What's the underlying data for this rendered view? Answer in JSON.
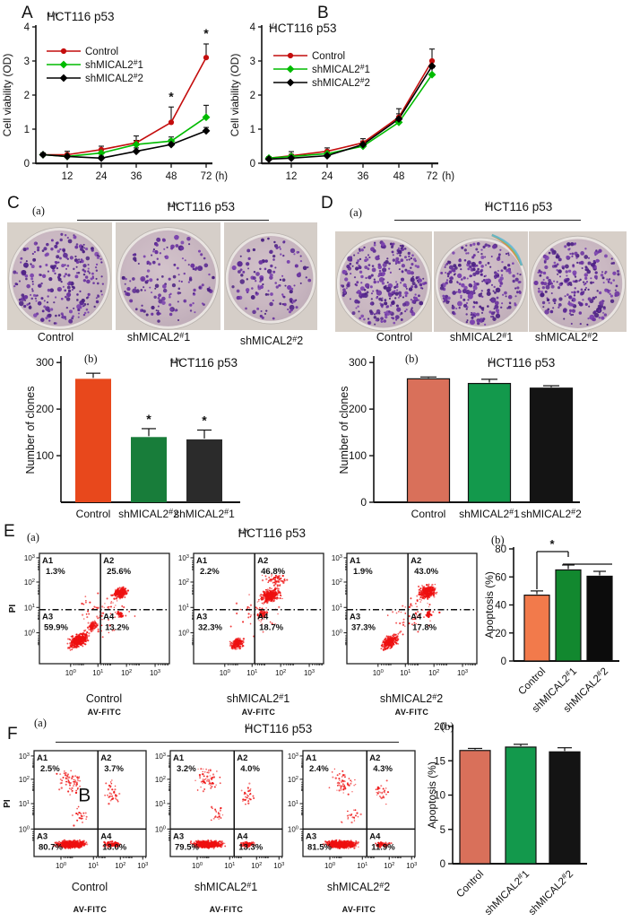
{
  "panels": {
    "A": {
      "label": "A",
      "title_base": "HCT116 p53",
      "title_sup": "+/+"
    },
    "B": {
      "label": "B",
      "title_base": "HCT116 p53",
      "title_sup": "-/-"
    },
    "C": {
      "label": "C",
      "marker_a": "(a)",
      "marker_b": "(b)",
      "title_base": "HCT116 p53",
      "title_sup": "+/+",
      "dish_labels": [
        "Control",
        "shMICAL2#1",
        "shMICAL2#2"
      ],
      "colony_counts": [
        260,
        150,
        125
      ]
    },
    "D": {
      "label": "D",
      "marker_a": "(a)",
      "marker_b": "(b)",
      "title_base": "HCT116 p53",
      "title_sup": "-/-",
      "dish_labels": [
        "Control",
        "shMICAL2#1",
        "shMICAL2#2"
      ],
      "colony_counts": [
        290,
        265,
        255
      ]
    },
    "E": {
      "label": "E",
      "marker_a": "(a)",
      "marker_b": "(b)",
      "title_base": "HCT116 p53",
      "title_sup": "+/+",
      "plot_labels": [
        "Control",
        "shMICAL2#1",
        "shMICAL2#2"
      ]
    },
    "F": {
      "label": "F",
      "marker_a": "(a)",
      "marker_b": "(b)",
      "title_base": "HCT116 p53",
      "title_sup": "-/-",
      "plot_labels": [
        "Control",
        "shMICAL2#1",
        "shMICAL2#2"
      ],
      "stray_label": "B"
    }
  },
  "chart_data": [
    {
      "id": "A",
      "type": "line",
      "title": "HCT116 p53+/+",
      "xlabel": "(h)",
      "ylabel": "Cell viability (OD)",
      "x": [
        0,
        12,
        24,
        36,
        48,
        72
      ],
      "xticklabels": [
        "12",
        "24",
        "36",
        "48",
        "72"
      ],
      "ylim": [
        0,
        4
      ],
      "yticks": [
        0,
        1,
        2,
        3,
        4
      ],
      "series": [
        {
          "name": "Control",
          "color": "#c40d0d",
          "marker": "circle",
          "values": [
            0.25,
            0.25,
            0.4,
            0.6,
            1.2,
            3.1
          ],
          "errors": [
            0.05,
            0.1,
            0.1,
            0.2,
            0.45,
            0.4
          ]
        },
        {
          "name": "shMICAL2#1",
          "color": "#00bb00",
          "marker": "diamond",
          "values": [
            0.25,
            0.2,
            0.3,
            0.55,
            0.65,
            1.35
          ],
          "errors": [
            0.04,
            0.05,
            0.08,
            0.12,
            0.12,
            0.35
          ]
        },
        {
          "name": "shMICAL2#2",
          "color": "#000000",
          "marker": "diamond",
          "values": [
            0.25,
            0.2,
            0.15,
            0.35,
            0.55,
            0.95
          ],
          "errors": [
            0.04,
            0.05,
            0.06,
            0.1,
            0.15,
            0.1
          ]
        }
      ],
      "significance": [
        {
          "point_index": 4,
          "text": "*"
        },
        {
          "point_index": 5,
          "text": "*"
        }
      ]
    },
    {
      "id": "B",
      "type": "line",
      "title": "HCT116 p53-/-",
      "xlabel": "(h)",
      "ylabel": "Cell viability (OD)",
      "x": [
        0,
        12,
        24,
        36,
        48,
        72
      ],
      "xticklabels": [
        "12",
        "24",
        "36",
        "48",
        "72"
      ],
      "ylim": [
        0,
        4
      ],
      "yticks": [
        0,
        1,
        2,
        3,
        4
      ],
      "series": [
        {
          "name": "Control",
          "color": "#c40d0d",
          "marker": "circle",
          "values": [
            0.15,
            0.22,
            0.35,
            0.6,
            1.35,
            3.0
          ],
          "errors": [
            0.04,
            0.12,
            0.1,
            0.12,
            0.25,
            0.35
          ]
        },
        {
          "name": "shMICAL2#1",
          "color": "#00bb00",
          "marker": "diamond",
          "values": [
            0.15,
            0.2,
            0.28,
            0.5,
            1.2,
            2.6
          ],
          "errors": [
            0.04,
            0.06,
            0.08,
            0.1,
            0.15,
            0.2
          ]
        },
        {
          "name": "shMICAL2#2",
          "color": "#000000",
          "marker": "diamond",
          "values": [
            0.12,
            0.15,
            0.22,
            0.55,
            1.3,
            2.85
          ],
          "errors": [
            0.04,
            0.05,
            0.06,
            0.1,
            0.15,
            0.15
          ]
        }
      ],
      "significance": []
    },
    {
      "id": "Cb",
      "type": "bar",
      "title": "HCT116 p53+/+",
      "ylabel": "Number of clones",
      "categories": [
        "Control",
        "shMICAL2#2",
        "shMICAL2#1"
      ],
      "values": [
        265,
        140,
        135
      ],
      "errors": [
        12,
        18,
        20
      ],
      "colors": [
        "#e8481c",
        "#187d3a",
        "#2b2b2b"
      ],
      "yticks": [
        100,
        200,
        300
      ],
      "ylim": [
        0,
        310
      ],
      "significance": [
        "",
        "*",
        "*"
      ]
    },
    {
      "id": "Db",
      "type": "bar",
      "title": "HCT116 p53-/-",
      "ylabel": "Number of clones",
      "categories": [
        "Control",
        "shMICAL2#1",
        "shMICAL2#2"
      ],
      "values": [
        265,
        255,
        245
      ],
      "errors": [
        4,
        9,
        5
      ],
      "colors": [
        "#d9705a",
        "#13994c",
        "#141414"
      ],
      "yticks": [
        0,
        100,
        200,
        300
      ],
      "ylim": [
        0,
        310
      ],
      "significance": [
        "",
        "",
        ""
      ]
    },
    {
      "id": "Eb",
      "type": "bar",
      "title": "",
      "ylabel": "Apoptosis (%)",
      "categories": [
        "Control",
        "shMICAL2#1",
        "shMICAL2#2"
      ],
      "values": [
        47,
        65,
        60.5
      ],
      "errors": [
        3,
        3.5,
        3.5
      ],
      "colors": [
        "#f27a4b",
        "#12882f",
        "#0c0c0c"
      ],
      "yticks": [
        0,
        20,
        40,
        60,
        80
      ],
      "ylim": [
        0,
        80
      ],
      "significance": [
        "",
        "",
        ""
      ],
      "significance_bracket": {
        "from": "Control",
        "to": "shMICAL2#1",
        "text": "*"
      }
    },
    {
      "id": "Fb",
      "type": "bar",
      "title": "",
      "ylabel": "Apoptosis (%)",
      "categories": [
        "Control",
        "shMICAL2#1",
        "shMICAL2#2"
      ],
      "values": [
        16.5,
        17.0,
        16.3
      ],
      "errors": [
        0.3,
        0.4,
        0.6
      ],
      "colors": [
        "#d9705a",
        "#13994c",
        "#141414"
      ],
      "yticks": [
        0,
        5,
        10,
        15,
        20
      ],
      "ylim": [
        0,
        20
      ],
      "significance": [
        "",
        "",
        ""
      ]
    },
    {
      "id": "E-Control",
      "type": "scatter",
      "panel": "E",
      "label": "Control",
      "xlabel": "AV-FITC",
      "ylabel": "PI",
      "tick_exponents": [
        0,
        1,
        2,
        3
      ],
      "quadrants": {
        "A1": "1.3%",
        "A2": "25.6%",
        "A3": "59.9%",
        "A4": "13.2%"
      },
      "clusters": [
        [
          0.3,
          0.79,
          0.1,
          0.08,
          420,
          0.5
        ],
        [
          0.41,
          0.66,
          0.05,
          0.05,
          90,
          0.3
        ],
        [
          0.62,
          0.36,
          0.075,
          0.065,
          240,
          0.3
        ],
        [
          0.62,
          0.555,
          0.028,
          0.035,
          45,
          0
        ],
        [
          0.5,
          0.55,
          0.26,
          0.28,
          70,
          0
        ]
      ]
    },
    {
      "id": "E-shMICAL2#1",
      "type": "scatter",
      "panel": "E",
      "label": "shMICAL2#1",
      "xlabel": "AV-FITC",
      "ylabel": "PI",
      "tick_exponents": [
        0,
        1,
        2,
        3
      ],
      "quadrants": {
        "A1": "2.2%",
        "A2": "46.8%",
        "A3": "32.3%",
        "A4": "18.7%"
      },
      "clusters": [
        [
          0.335,
          0.82,
          0.065,
          0.06,
          190,
          0.4
        ],
        [
          0.59,
          0.38,
          0.1,
          0.085,
          330,
          0.2
        ],
        [
          0.62,
          0.24,
          0.13,
          0.06,
          70,
          0
        ],
        [
          0.53,
          0.55,
          0.045,
          0.055,
          70,
          0
        ],
        [
          0.5,
          0.55,
          0.25,
          0.27,
          50,
          0
        ]
      ]
    },
    {
      "id": "E-shMICAL2#2",
      "type": "scatter",
      "panel": "E",
      "label": "shMICAL2#2",
      "xlabel": "AV-FITC",
      "ylabel": "PI",
      "tick_exponents": [
        0,
        1,
        2,
        3
      ],
      "quadrants": {
        "A1": "1.9%",
        "A2": "43.0%",
        "A3": "37.3%",
        "A4": "17.8%"
      },
      "clusters": [
        [
          0.33,
          0.8,
          0.085,
          0.075,
          300,
          0.5
        ],
        [
          0.62,
          0.35,
          0.085,
          0.08,
          330,
          0.25
        ],
        [
          0.63,
          0.55,
          0.03,
          0.04,
          55,
          0
        ],
        [
          0.5,
          0.55,
          0.25,
          0.27,
          60,
          0
        ]
      ]
    },
    {
      "id": "F-Control",
      "type": "scatter",
      "panel": "F",
      "label": "Control",
      "xlabel": "AV-FITC",
      "ylabel": "PI",
      "tick_exponents": [
        0,
        1,
        2,
        3
      ],
      "quadrants": {
        "A1": "2.5%",
        "A2": "3.7%",
        "A3": "80.7%",
        "A4": "13.0%"
      },
      "clusters": [
        [
          0.33,
          0.885,
          0.17,
          0.045,
          650,
          0
        ],
        [
          0.7,
          0.885,
          0.1,
          0.035,
          110,
          0
        ],
        [
          0.33,
          0.3,
          0.15,
          0.17,
          70,
          0
        ],
        [
          0.7,
          0.4,
          0.09,
          0.16,
          35,
          0
        ],
        [
          0.4,
          0.62,
          0.12,
          0.12,
          25,
          0
        ]
      ]
    },
    {
      "id": "F-shMICAL2#1",
      "type": "scatter",
      "panel": "F",
      "label": "shMICAL2#1",
      "xlabel": "AV-FITC",
      "ylabel": "PI",
      "tick_exponents": [
        0,
        1,
        2,
        3
      ],
      "quadrants": {
        "A1": "3.2%",
        "A2": "4.0%",
        "A3": "79.5%",
        "A4": "13.3%"
      },
      "clusters": [
        [
          0.33,
          0.885,
          0.17,
          0.045,
          640,
          0
        ],
        [
          0.69,
          0.885,
          0.09,
          0.032,
          95,
          0
        ],
        [
          0.34,
          0.28,
          0.15,
          0.16,
          60,
          0
        ],
        [
          0.68,
          0.4,
          0.09,
          0.15,
          30,
          0
        ],
        [
          0.42,
          0.6,
          0.12,
          0.12,
          22,
          0
        ]
      ]
    },
    {
      "id": "F-shMICAL2#2",
      "type": "scatter",
      "panel": "F",
      "label": "shMICAL2#2",
      "xlabel": "AV-FITC",
      "ylabel": "PI",
      "tick_exponents": [
        0,
        1,
        2,
        3
      ],
      "quadrants": {
        "A1": "2.4%",
        "A2": "4.3%",
        "A3": "81.5%",
        "A4": "11.9%"
      },
      "clusters": [
        [
          0.34,
          0.885,
          0.175,
          0.045,
          660,
          0
        ],
        [
          0.71,
          0.885,
          0.09,
          0.032,
          85,
          0
        ],
        [
          0.35,
          0.3,
          0.15,
          0.16,
          55,
          0
        ],
        [
          0.69,
          0.38,
          0.09,
          0.15,
          35,
          0
        ],
        [
          0.43,
          0.62,
          0.12,
          0.12,
          22,
          0
        ]
      ]
    }
  ],
  "scatter_dot_color": "#ee1010",
  "colony_color_palette": [
    "#5a2a92",
    "#6c35a0",
    "#4d2383",
    "#7b43ae"
  ]
}
